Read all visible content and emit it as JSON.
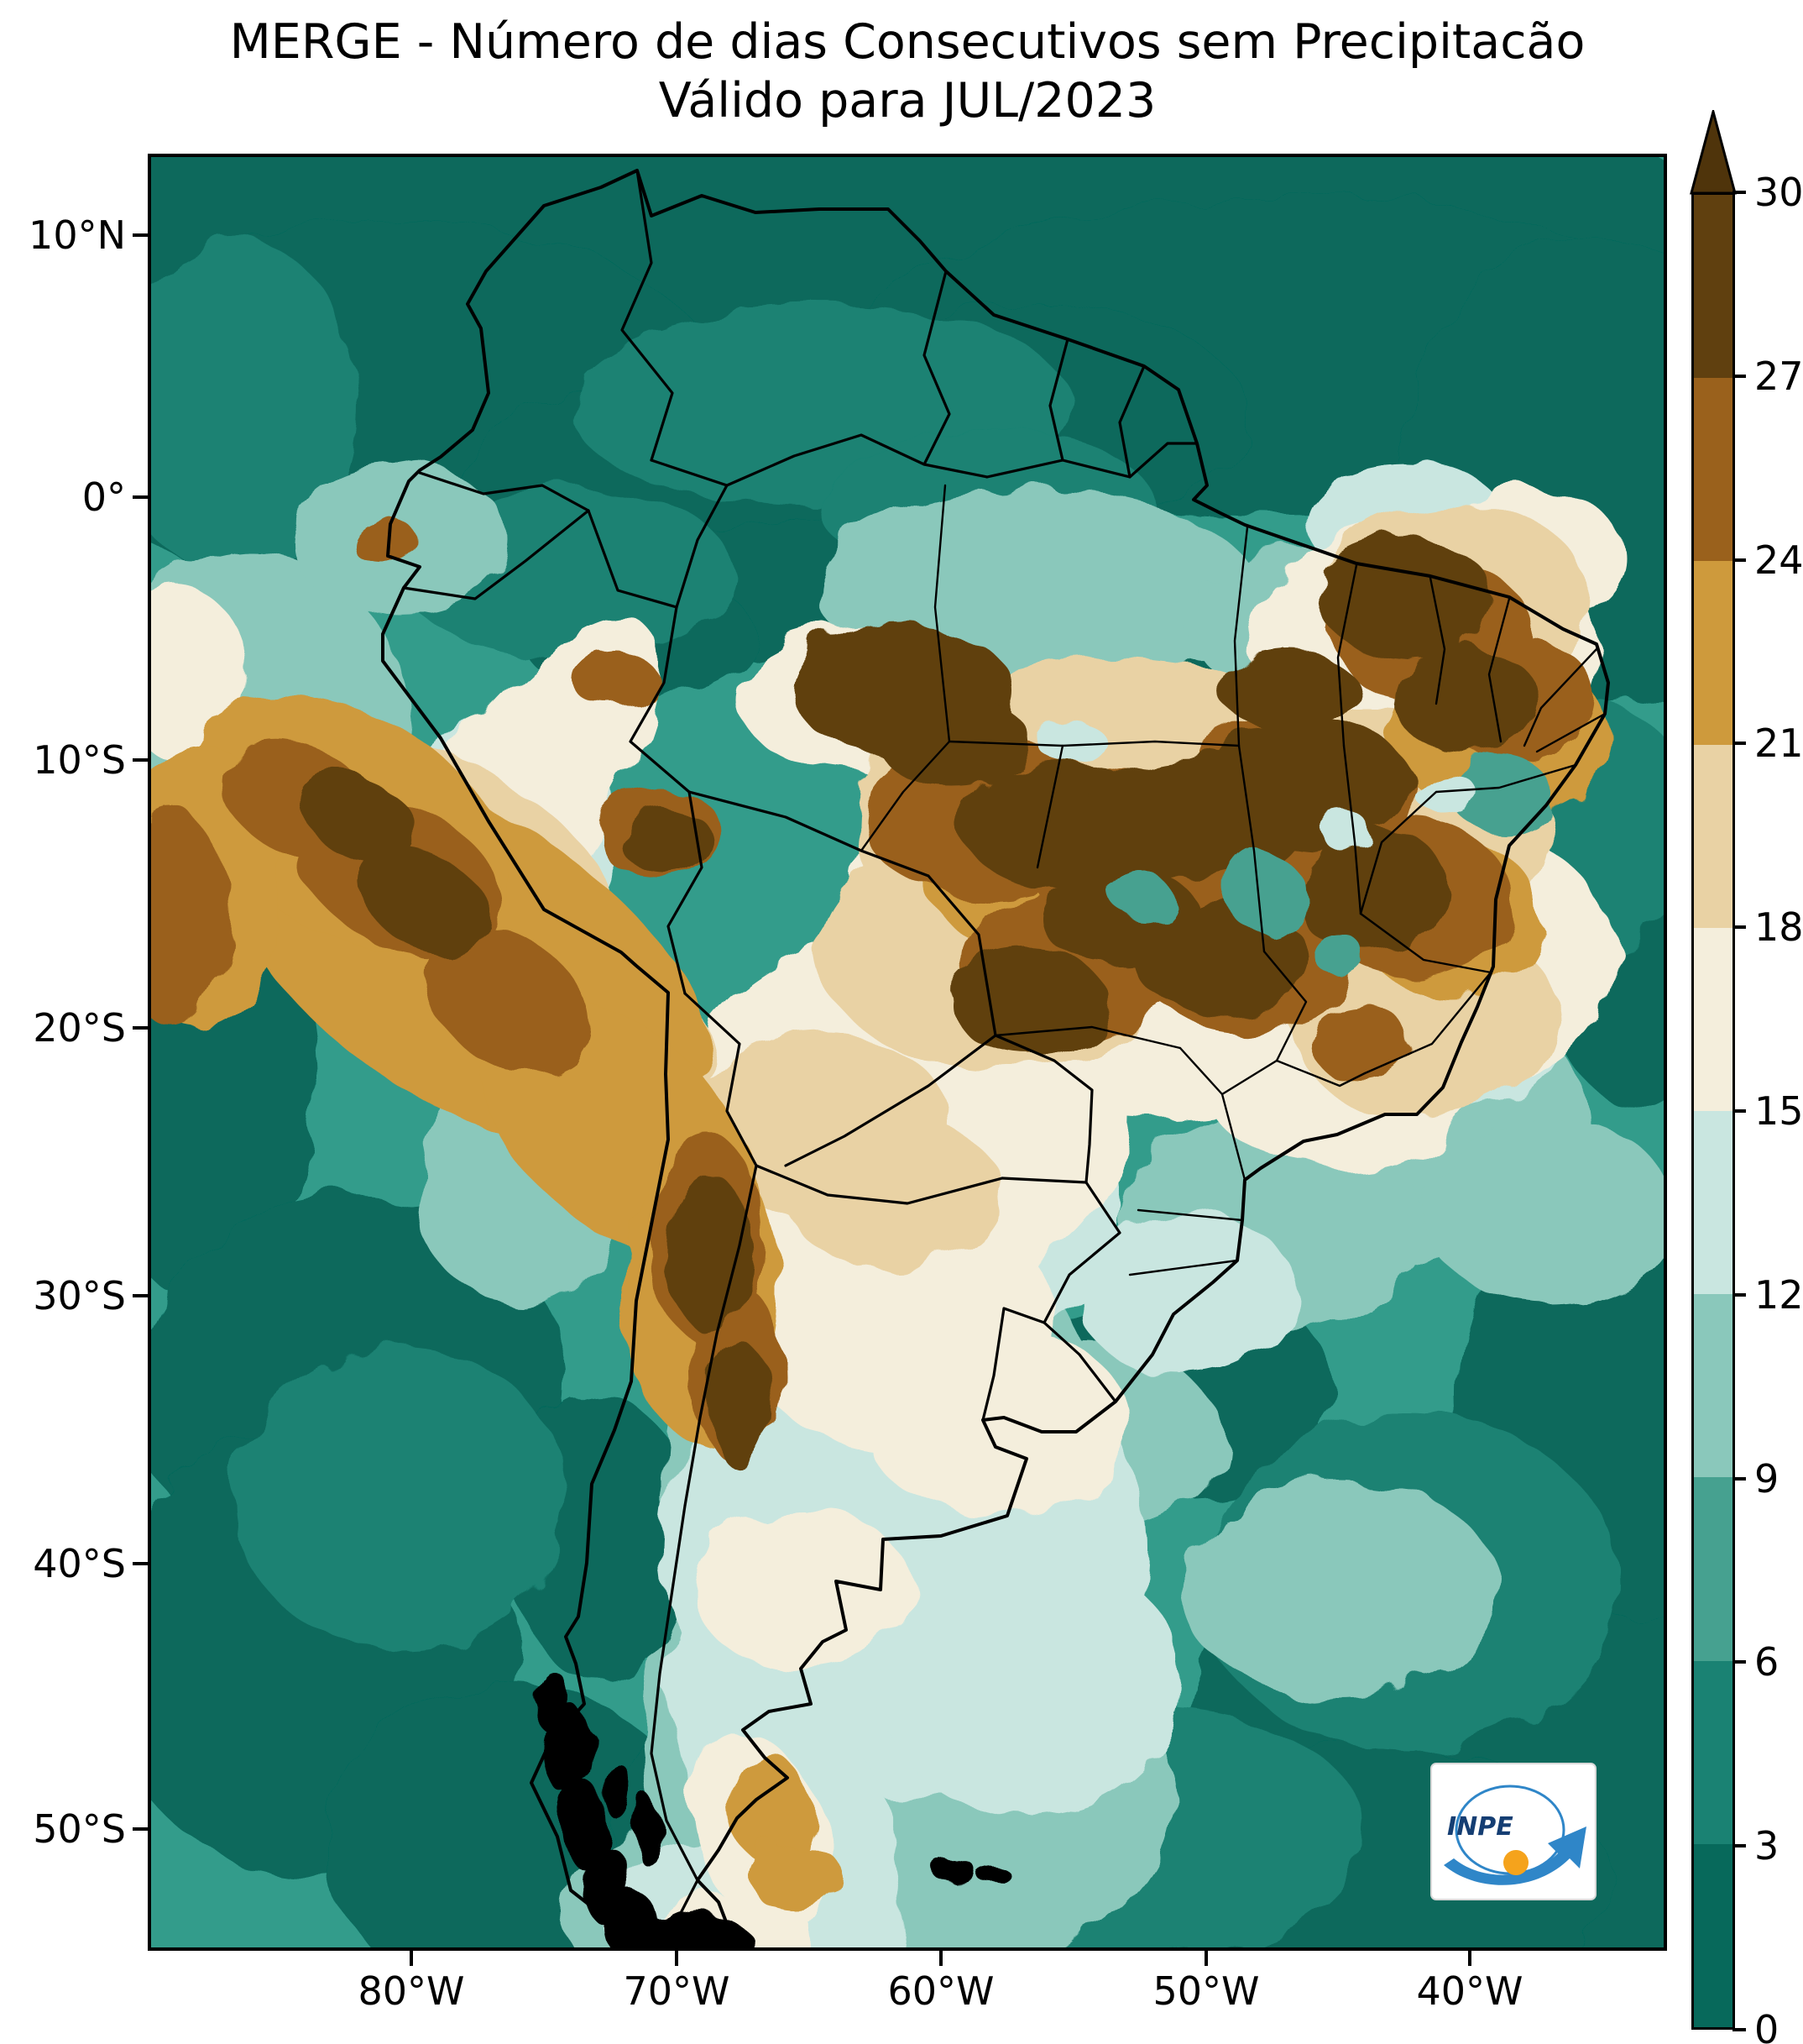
{
  "title": {
    "line1": "MERGE - Número de dias Consecutivos sem Precipitacão",
    "line2": "Válido para JUL/2023"
  },
  "axes": {
    "y_ticks": [
      "10°N",
      "0°",
      "10°S",
      "20°S",
      "30°S",
      "40°S",
      "50°S"
    ],
    "x_ticks": [
      "80°W",
      "70°W",
      "60°W",
      "50°W",
      "40°W"
    ]
  },
  "colorbar": {
    "min": 0,
    "max": 30,
    "interval": 3,
    "extended_above_max": true,
    "ticks_top_to_bottom": [
      "30",
      "27",
      "24",
      "21",
      "18",
      "15",
      "12",
      "9",
      "6",
      "3",
      "0"
    ],
    "segment_colors_low_to_high": [
      "#07695B",
      "#1A8273",
      "#46A190",
      "#8AC8BB",
      "#C9E6E0",
      "#F4EEDC",
      "#E9D2A4",
      "#CE9A3C",
      "#9A611C",
      "#60400F"
    ],
    "arrow_color": "#4F340B"
  },
  "map_palette": {
    "ocean_base": "#339C8B",
    "border": "#000000",
    "background": "#ffffff"
  },
  "logo": {
    "text": "INPE",
    "blue": "#2F86C8",
    "dark_blue": "#153E73",
    "orange": "#F5A31C"
  }
}
